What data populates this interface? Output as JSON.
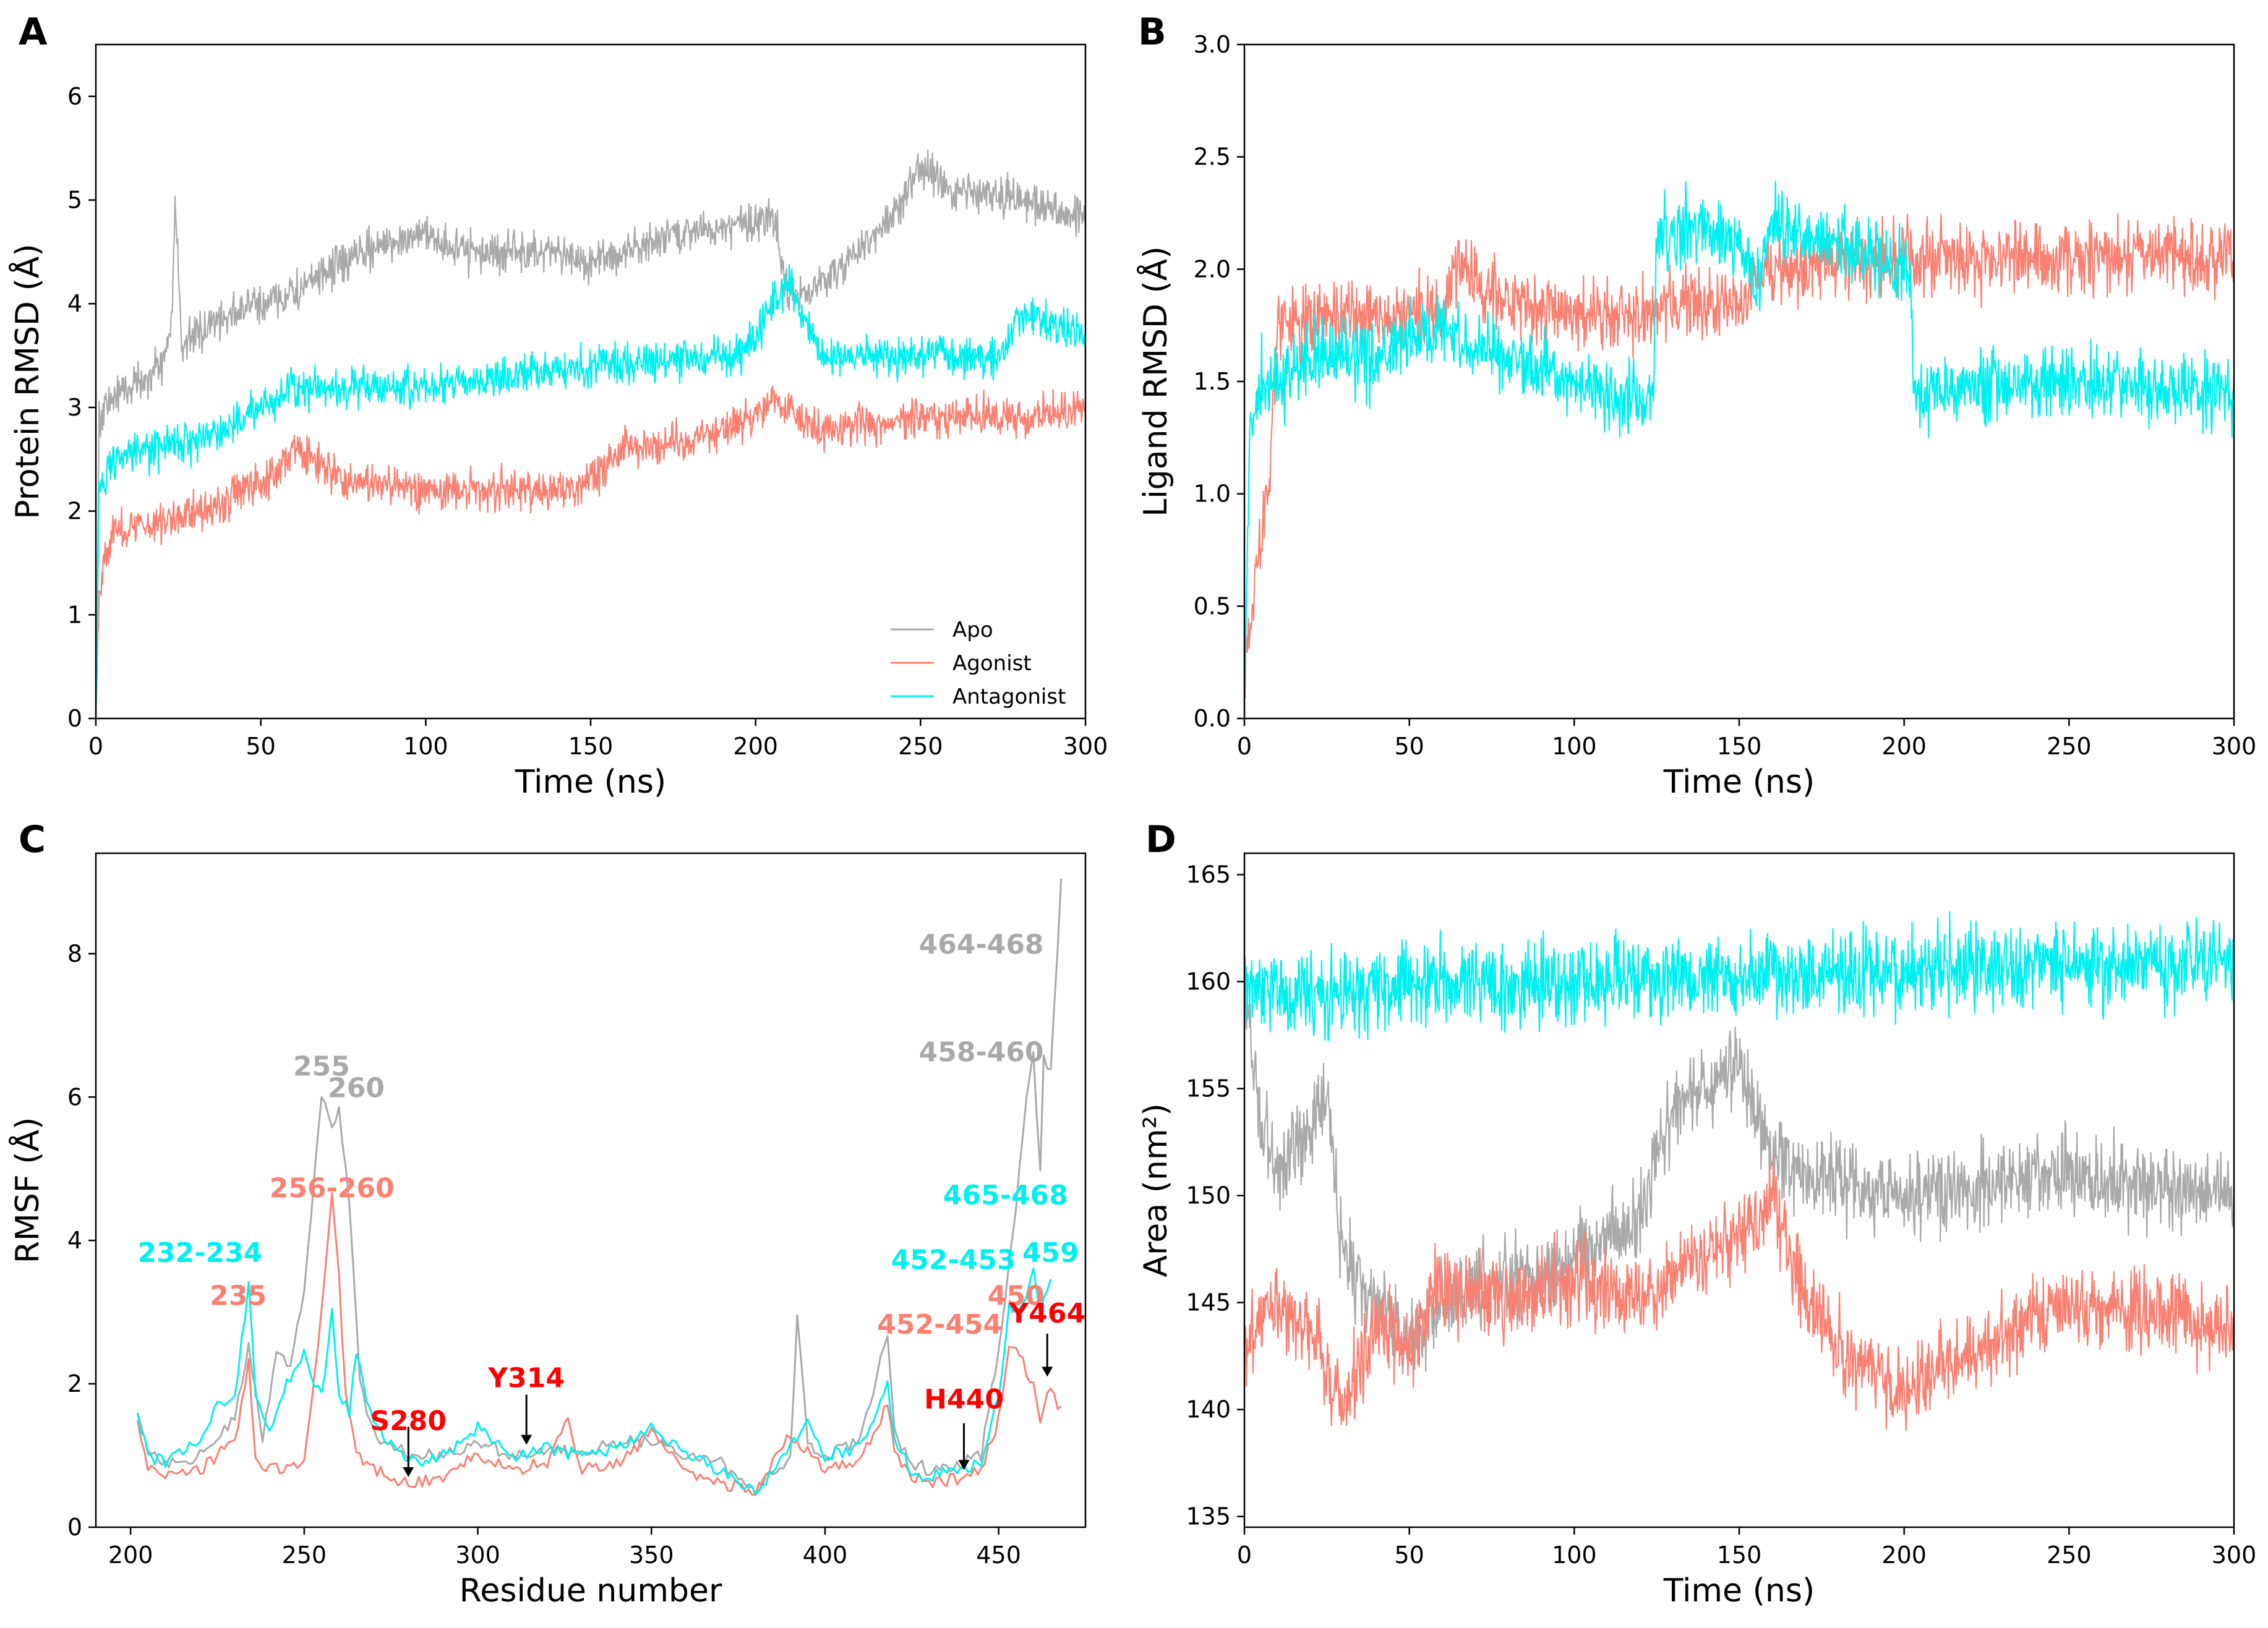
{
  "colors": {
    "apo": "#a9a9a9",
    "agonist": "#fa8072",
    "antagonist": "#00f0f0",
    "highlight": "#ff0000"
  },
  "legend": {
    "items": [
      "Apo",
      "Agonist",
      "Antagonist"
    ]
  },
  "chart_data": [
    {
      "panel": "A",
      "type": "line",
      "xlabel": "Time (ns)",
      "ylabel": "Protein RMSD (Å)",
      "xlim": [
        0,
        300
      ],
      "ylim": [
        0,
        6.5
      ],
      "xticks": [
        0,
        50,
        100,
        150,
        200,
        250,
        300
      ],
      "yticks": [
        0,
        1,
        2,
        3,
        4,
        5,
        6
      ],
      "noise": 0.12,
      "series": [
        {
          "name": "Apo",
          "color": "#a9a9a9",
          "x": [
            0,
            1,
            5,
            10,
            20,
            23,
            24,
            26,
            30,
            40,
            50,
            60,
            75,
            90,
            100,
            110,
            130,
            150,
            170,
            180,
            200,
            205,
            210,
            220,
            240,
            250,
            260,
            280,
            300
          ],
          "y": [
            0,
            2.9,
            3.1,
            3.2,
            3.4,
            3.8,
            5.0,
            3.6,
            3.7,
            3.9,
            4.0,
            4.1,
            4.4,
            4.6,
            4.7,
            4.5,
            4.5,
            4.4,
            4.6,
            4.7,
            4.8,
            4.9,
            4.1,
            4.2,
            4.8,
            5.3,
            5.1,
            5.0,
            4.8
          ]
        },
        {
          "name": "Agonist",
          "color": "#fa8072",
          "x": [
            0,
            1,
            5,
            20,
            40,
            55,
            60,
            75,
            100,
            130,
            145,
            160,
            180,
            200,
            205,
            220,
            250,
            280,
            300
          ],
          "y": [
            0,
            1.3,
            1.8,
            1.9,
            2.1,
            2.4,
            2.6,
            2.3,
            2.2,
            2.2,
            2.2,
            2.6,
            2.7,
            2.9,
            3.1,
            2.8,
            2.9,
            2.9,
            3.0
          ]
        },
        {
          "name": "Antagonist",
          "color": "#00f0f0",
          "x": [
            0,
            1,
            5,
            20,
            40,
            50,
            60,
            100,
            150,
            195,
            200,
            205,
            210,
            220,
            250,
            275,
            280,
            300
          ],
          "y": [
            0,
            2.2,
            2.5,
            2.6,
            2.8,
            3.0,
            3.2,
            3.2,
            3.4,
            3.5,
            3.7,
            4.0,
            4.2,
            3.5,
            3.5,
            3.5,
            3.9,
            3.7
          ]
        }
      ],
      "legend": "lower right"
    },
    {
      "panel": "B",
      "type": "line",
      "xlabel": "Time (ns)",
      "ylabel": "Ligand RMSD (Å)",
      "xlim": [
        0,
        300
      ],
      "ylim": [
        0,
        3.0
      ],
      "xticks": [
        0,
        50,
        100,
        150,
        200,
        250,
        300
      ],
      "yticks": [
        0.0,
        0.5,
        1.0,
        1.5,
        2.0,
        2.5,
        3.0
      ],
      "noise": 0.1,
      "series": [
        {
          "name": "Agonist",
          "color": "#fa8072",
          "x": [
            0,
            2,
            5,
            8,
            10,
            30,
            60,
            65,
            80,
            100,
            120,
            150,
            160,
            200,
            250,
            300
          ],
          "y": [
            0.2,
            0.5,
            0.8,
            1.2,
            1.75,
            1.78,
            1.8,
            2.0,
            1.85,
            1.8,
            1.8,
            1.85,
            2.0,
            2.05,
            2.05,
            2.05
          ]
        },
        {
          "name": "Antagonist",
          "color": "#00f0f0",
          "x": [
            0,
            2,
            5,
            10,
            20,
            40,
            60,
            80,
            100,
            110,
            124,
            125,
            140,
            150,
            155,
            160,
            180,
            200,
            202,
            203,
            250,
            300
          ],
          "y": [
            0.1,
            1.4,
            1.5,
            1.5,
            1.6,
            1.6,
            1.75,
            1.6,
            1.5,
            1.45,
            1.4,
            2.15,
            2.2,
            2.1,
            1.9,
            2.2,
            2.1,
            2.0,
            2.0,
            1.45,
            1.5,
            1.45
          ]
        }
      ]
    },
    {
      "panel": "C",
      "type": "line",
      "xlabel": "Residue number",
      "ylabel": "RMSF (Å)",
      "xlim": [
        190,
        475
      ],
      "ylim": [
        0,
        9.4
      ],
      "xticks": [
        200,
        250,
        300,
        350,
        400,
        450
      ],
      "yticks": [
        0,
        2,
        4,
        6,
        8
      ],
      "series": [
        {
          "name": "Apo",
          "color": "#a9a9a9",
          "x": [
            202,
            205,
            210,
            220,
            230,
            234,
            238,
            242,
            246,
            250,
            255,
            258,
            260,
            263,
            266,
            270,
            280,
            290,
            300,
            310,
            320,
            330,
            340,
            350,
            360,
            370,
            380,
            390,
            392,
            395,
            400,
            410,
            418,
            420,
            425,
            430,
            440,
            445,
            450,
            455,
            458,
            460,
            462,
            463,
            465,
            468
          ],
          "y": [
            1.6,
            1.1,
            0.9,
            1.0,
            1.5,
            2.5,
            1.2,
            2.5,
            2.2,
            3.3,
            6.0,
            5.5,
            5.9,
            4.5,
            2.0,
            1.3,
            1.0,
            1.0,
            1.2,
            1.0,
            1.1,
            1.0,
            1.2,
            1.2,
            1.0,
            0.9,
            0.5,
            1.0,
            2.9,
            1.2,
            1.0,
            1.2,
            2.7,
            1.3,
            0.9,
            0.8,
            0.9,
            1.0,
            2.5,
            4.5,
            6.0,
            6.6,
            5.0,
            6.5,
            6.3,
            9.0
          ]
        },
        {
          "name": "Agonist",
          "color": "#fa8072",
          "x": [
            202,
            205,
            210,
            220,
            230,
            234,
            236,
            240,
            250,
            255,
            258,
            260,
            262,
            265,
            270,
            280,
            290,
            300,
            310,
            320,
            326,
            330,
            340,
            350,
            360,
            370,
            380,
            390,
            400,
            410,
            418,
            420,
            425,
            430,
            440,
            445,
            450,
            453,
            455,
            460,
            462,
            465,
            468
          ],
          "y": [
            1.5,
            0.8,
            0.7,
            0.8,
            1.2,
            2.3,
            1.0,
            0.8,
            0.9,
            3.0,
            4.6,
            3.5,
            1.8,
            1.0,
            0.8,
            0.6,
            0.7,
            1.0,
            0.8,
            0.9,
            1.5,
            0.8,
            0.9,
            1.3,
            0.8,
            0.6,
            0.5,
            1.3,
            0.8,
            0.9,
            1.7,
            1.0,
            0.7,
            0.6,
            0.7,
            0.8,
            1.5,
            2.6,
            2.5,
            2.0,
            1.4,
            2.0,
            1.6
          ]
        },
        {
          "name": "Antagonist",
          "color": "#00f0f0",
          "x": [
            202,
            205,
            210,
            220,
            225,
            230,
            234,
            236,
            240,
            245,
            250,
            255,
            258,
            260,
            263,
            265,
            270,
            280,
            290,
            300,
            310,
            320,
            330,
            340,
            350,
            360,
            370,
            380,
            390,
            395,
            400,
            410,
            418,
            420,
            425,
            430,
            440,
            445,
            450,
            453,
            455,
            458,
            460,
            462,
            465
          ],
          "y": [
            1.6,
            1.0,
            0.9,
            1.2,
            1.7,
            1.8,
            3.4,
            1.8,
            1.3,
            2.0,
            2.4,
            1.8,
            3.0,
            1.9,
            1.6,
            2.4,
            1.4,
            0.9,
            1.0,
            1.4,
            1.0,
            1.1,
            1.0,
            1.1,
            1.4,
            1.0,
            0.8,
            0.5,
            1.1,
            1.5,
            1.0,
            1.1,
            2.0,
            1.2,
            0.8,
            0.7,
            0.8,
            0.9,
            1.8,
            3.1,
            3.0,
            3.2,
            3.6,
            3.0,
            3.5
          ]
        }
      ],
      "annotations": [
        {
          "text": "255",
          "color": "#a9a9a9",
          "x": 255,
          "y": 6.3
        },
        {
          "text": "260",
          "color": "#a9a9a9",
          "x": 265,
          "y": 6.0
        },
        {
          "text": "464-468",
          "color": "#a9a9a9",
          "x": 445,
          "y": 8.0
        },
        {
          "text": "458-460",
          "color": "#a9a9a9",
          "x": 445,
          "y": 6.5
        },
        {
          "text": "256-260",
          "color": "#fa8072",
          "x": 258,
          "y": 4.6
        },
        {
          "text": "235",
          "color": "#fa8072",
          "x": 231,
          "y": 3.1
        },
        {
          "text": "450",
          "color": "#fa8072",
          "x": 455,
          "y": 3.1
        },
        {
          "text": "452-454",
          "color": "#fa8072",
          "x": 433,
          "y": 2.7
        },
        {
          "text": "232-234",
          "color": "#00f0f0",
          "x": 220,
          "y": 3.7
        },
        {
          "text": "465-468",
          "color": "#00f0f0",
          "x": 452,
          "y": 4.5
        },
        {
          "text": "452-453",
          "color": "#00f0f0",
          "x": 437,
          "y": 3.6
        },
        {
          "text": "459",
          "color": "#00f0f0",
          "x": 465,
          "y": 3.7
        }
      ],
      "arrows": [
        {
          "text": "S280",
          "x": 280,
          "label_y": 1.2,
          "y_start": 1.4,
          "y_end": 0.7
        },
        {
          "text": "Y314",
          "x": 314,
          "label_y": 1.8,
          "y_start": 1.85,
          "y_end": 1.15
        },
        {
          "text": "H440",
          "x": 440,
          "label_y": 1.5,
          "y_start": 1.45,
          "y_end": 0.8
        },
        {
          "text": "Y464",
          "x": 464,
          "label_y": 2.7,
          "y_start": 2.7,
          "y_end": 2.1
        }
      ]
    },
    {
      "panel": "D",
      "type": "line",
      "xlabel": "Time (ns)",
      "ylabel": "Area (nm²)",
      "xlim": [
        0,
        300
      ],
      "ylim": [
        134.5,
        166
      ],
      "xticks": [
        0,
        50,
        100,
        150,
        200,
        250,
        300
      ],
      "yticks": [
        135,
        140,
        145,
        150,
        155,
        160,
        165
      ],
      "noise": 1.2,
      "series": [
        {
          "name": "Apo",
          "color": "#a9a9a9",
          "x": [
            0,
            5,
            10,
            15,
            25,
            30,
            40,
            50,
            60,
            80,
            100,
            120,
            130,
            150,
            160,
            170,
            200,
            250,
            300
          ],
          "y": [
            160,
            153,
            151,
            152,
            155,
            147,
            145,
            143,
            145,
            146,
            147,
            149,
            154,
            156,
            152,
            151,
            150,
            151,
            150
          ]
        },
        {
          "name": "Agonist",
          "color": "#fa8072",
          "x": [
            0,
            10,
            20,
            30,
            40,
            50,
            60,
            80,
            100,
            120,
            140,
            150,
            160,
            170,
            180,
            200,
            250,
            300
          ],
          "y": [
            143,
            145,
            144,
            140,
            144,
            143,
            146,
            145,
            146,
            145,
            147,
            148,
            150,
            145,
            143,
            141,
            145,
            144
          ]
        },
        {
          "name": "Antagonist",
          "color": "#00f0f0",
          "x": [
            0,
            50,
            100,
            150,
            200,
            250,
            300
          ],
          "y": [
            159.5,
            159.8,
            160,
            160.3,
            160.5,
            160.8,
            161
          ]
        }
      ]
    }
  ]
}
